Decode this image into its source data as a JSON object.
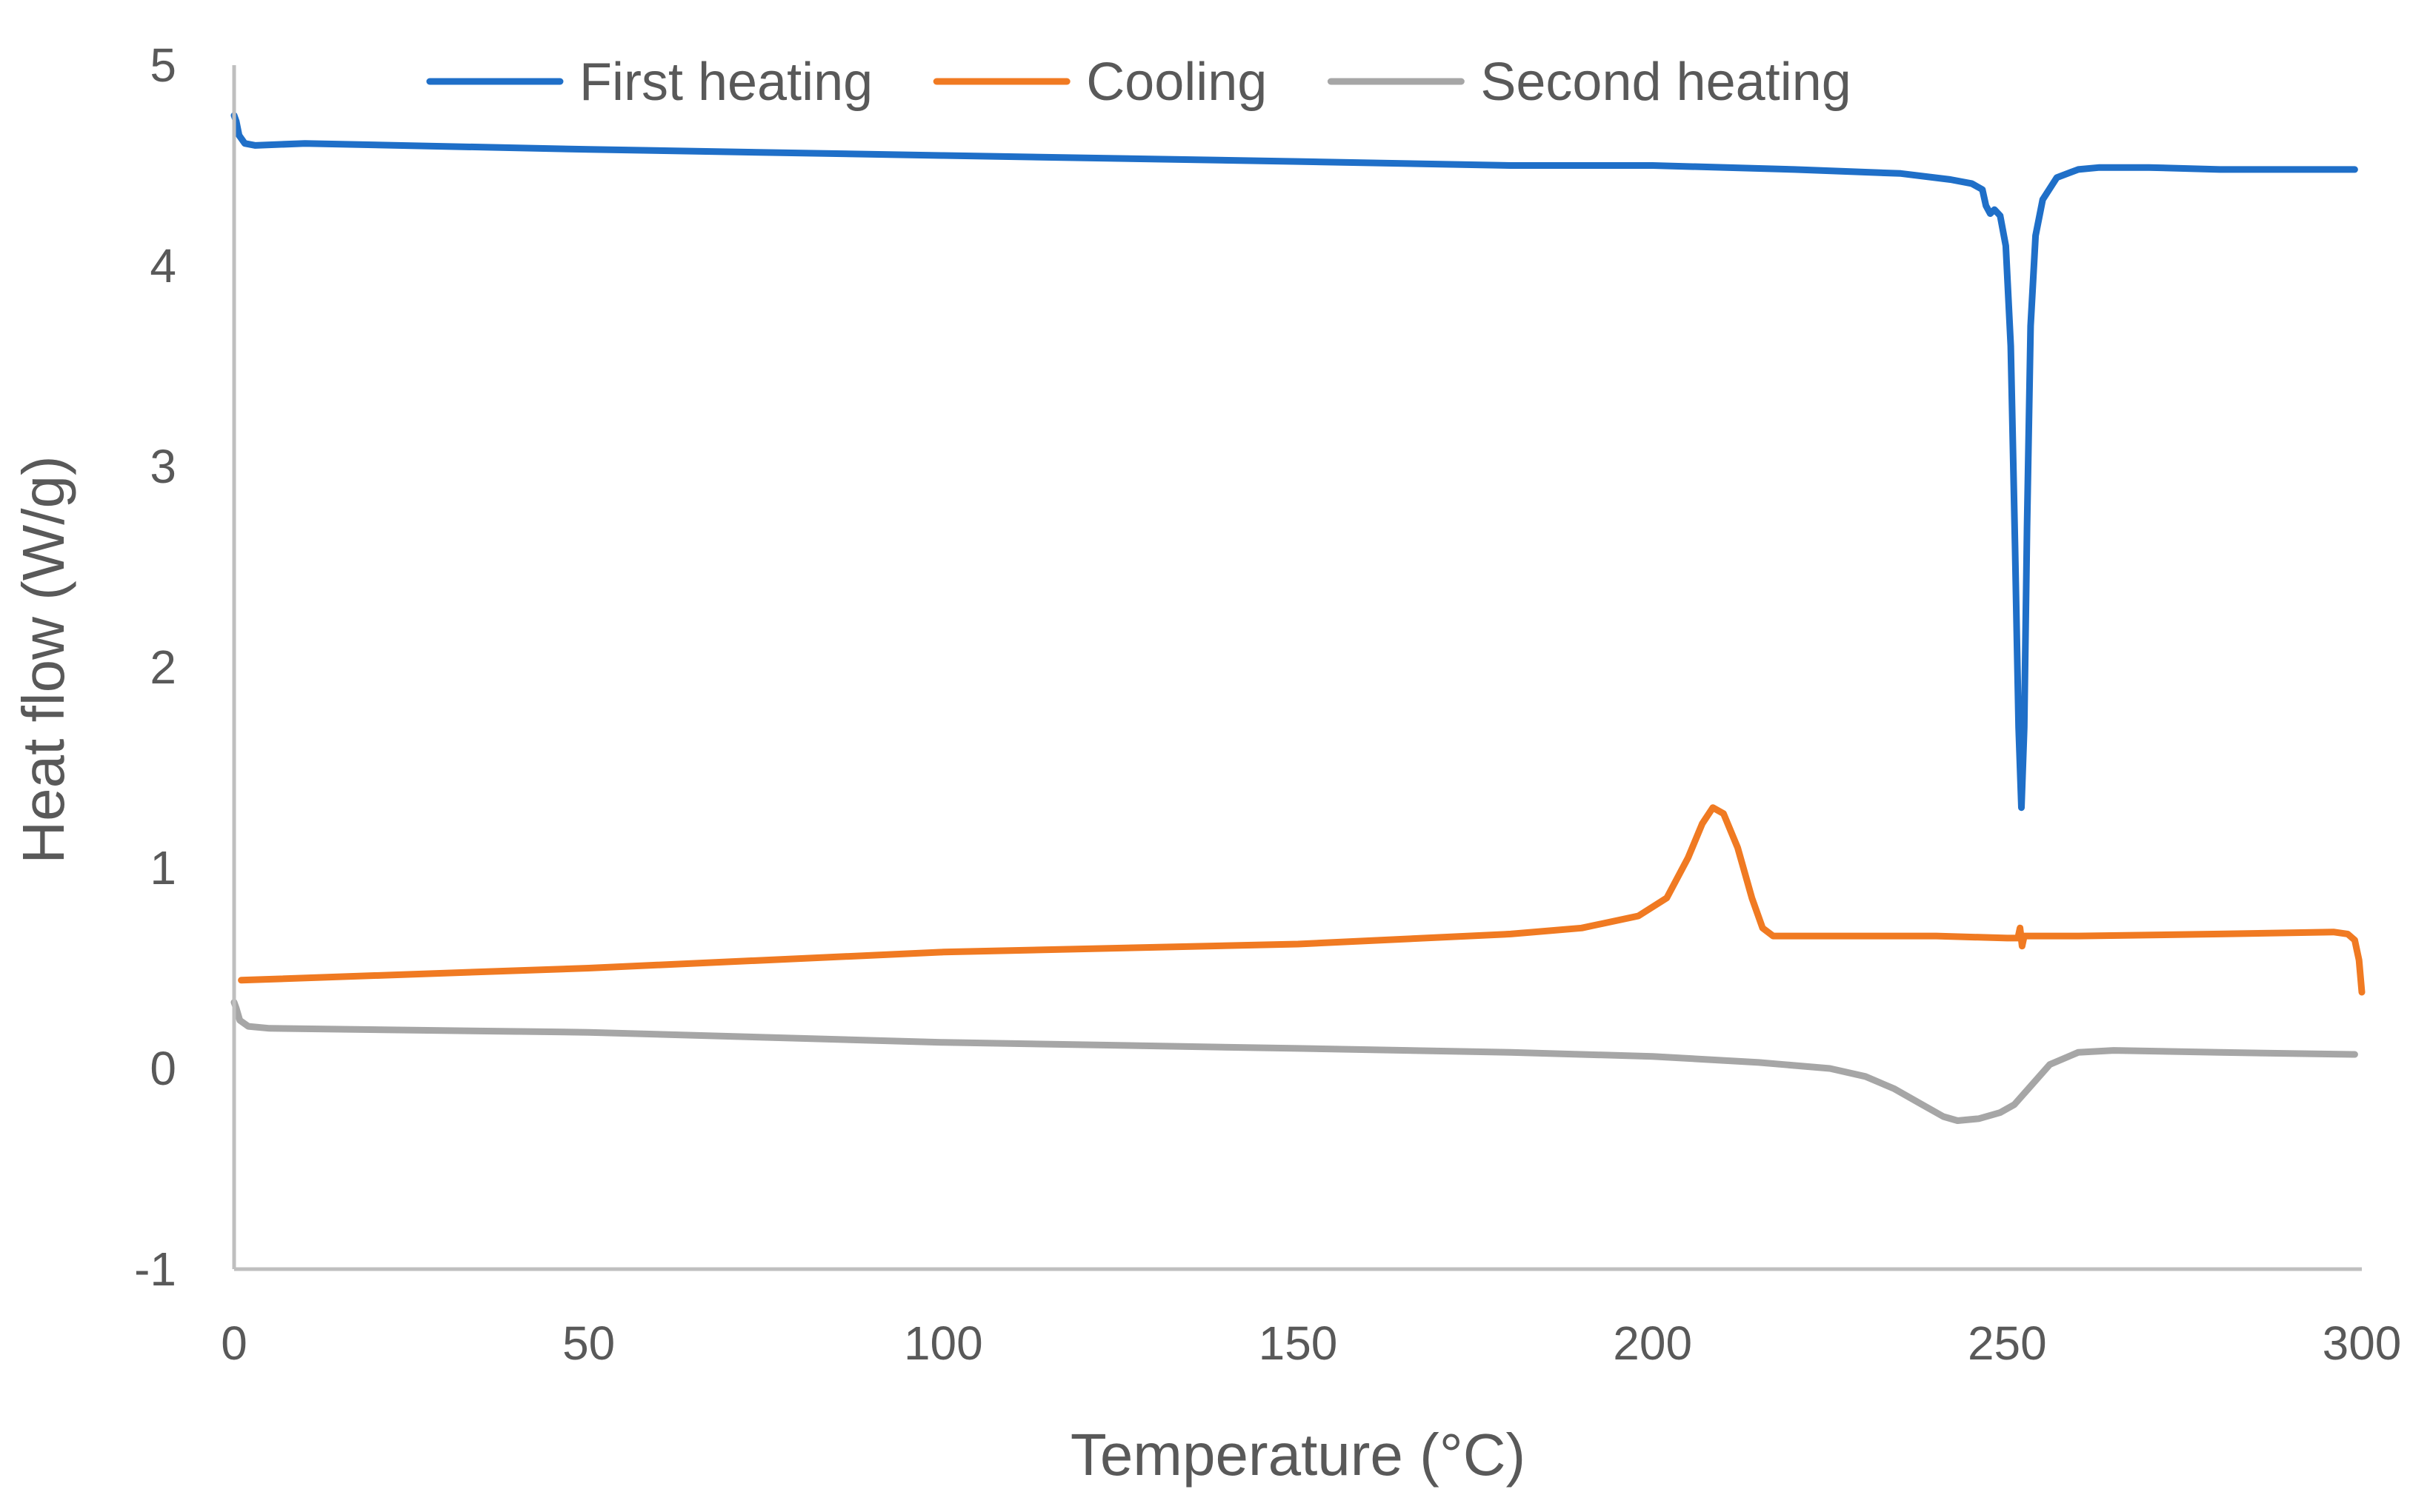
{
  "chart_data": {
    "type": "line",
    "title": "",
    "xlabel": "Temperature (°C)",
    "ylabel": "Heat flow (W/g)",
    "xlim": [
      0,
      300
    ],
    "ylim": [
      -1,
      5
    ],
    "xticks": [
      "0",
      "50",
      "100",
      "150",
      "200",
      "250",
      "300"
    ],
    "yticks": [
      "-1",
      "0",
      "1",
      "2",
      "3",
      "4",
      "5"
    ],
    "grid": false,
    "legend_position": "top",
    "series": [
      {
        "name": "First heating",
        "color": "#1f6fc8",
        "points": [
          [
            0,
            4.75
          ],
          [
            0.3,
            4.72
          ],
          [
            0.7,
            4.65
          ],
          [
            1.5,
            4.61
          ],
          [
            3,
            4.6
          ],
          [
            10,
            4.61
          ],
          [
            50,
            4.58
          ],
          [
            100,
            4.55
          ],
          [
            150,
            4.52
          ],
          [
            180,
            4.5
          ],
          [
            200,
            4.5
          ],
          [
            220,
            4.48
          ],
          [
            235,
            4.46
          ],
          [
            242,
            4.43
          ],
          [
            245,
            4.41
          ],
          [
            246.5,
            4.38
          ],
          [
            247,
            4.3
          ],
          [
            247.6,
            4.26
          ],
          [
            248.2,
            4.28
          ],
          [
            249,
            4.25
          ],
          [
            249.8,
            4.1
          ],
          [
            250.5,
            3.6
          ],
          [
            251.1,
            2.6
          ],
          [
            251.6,
            1.7
          ],
          [
            252,
            1.3
          ],
          [
            252.4,
            1.7
          ],
          [
            252.8,
            2.7
          ],
          [
            253.3,
            3.7
          ],
          [
            254,
            4.15
          ],
          [
            255,
            4.33
          ],
          [
            257,
            4.44
          ],
          [
            260,
            4.48
          ],
          [
            263,
            4.49
          ],
          [
            270,
            4.49
          ],
          [
            280,
            4.48
          ],
          [
            290,
            4.48
          ],
          [
            299,
            4.48
          ]
        ]
      },
      {
        "name": "Cooling",
        "color": "#f07a22",
        "points": [
          [
            1,
            0.44
          ],
          [
            50,
            0.5
          ],
          [
            100,
            0.58
          ],
          [
            150,
            0.62
          ],
          [
            180,
            0.67
          ],
          [
            190,
            0.7
          ],
          [
            198,
            0.76
          ],
          [
            202,
            0.85
          ],
          [
            205,
            1.05
          ],
          [
            207,
            1.22
          ],
          [
            208.5,
            1.3
          ],
          [
            210,
            1.27
          ],
          [
            212,
            1.1
          ],
          [
            214,
            0.85
          ],
          [
            215.5,
            0.7
          ],
          [
            217,
            0.66
          ],
          [
            220,
            0.66
          ],
          [
            240,
            0.66
          ],
          [
            250,
            0.65
          ],
          [
            251.5,
            0.65
          ],
          [
            251.8,
            0.7
          ],
          [
            252.1,
            0.61
          ],
          [
            252.4,
            0.66
          ],
          [
            260,
            0.66
          ],
          [
            280,
            0.67
          ],
          [
            296,
            0.68
          ],
          [
            298,
            0.67
          ],
          [
            299,
            0.64
          ],
          [
            299.6,
            0.54
          ],
          [
            300,
            0.38
          ]
        ]
      },
      {
        "name": "Second heating",
        "color": "#a6a6a6",
        "points": [
          [
            0,
            0.33
          ],
          [
            0.3,
            0.3
          ],
          [
            0.8,
            0.24
          ],
          [
            2,
            0.21
          ],
          [
            5,
            0.2
          ],
          [
            50,
            0.18
          ],
          [
            100,
            0.13
          ],
          [
            150,
            0.1
          ],
          [
            180,
            0.08
          ],
          [
            200,
            0.06
          ],
          [
            215,
            0.03
          ],
          [
            225,
            0.0
          ],
          [
            230,
            -0.04
          ],
          [
            234,
            -0.1
          ],
          [
            238,
            -0.18
          ],
          [
            241,
            -0.24
          ],
          [
            243,
            -0.26
          ],
          [
            246,
            -0.25
          ],
          [
            249,
            -0.22
          ],
          [
            251,
            -0.18
          ],
          [
            253,
            -0.1
          ],
          [
            256,
            0.02
          ],
          [
            260,
            0.08
          ],
          [
            265,
            0.09
          ],
          [
            280,
            0.08
          ],
          [
            299,
            0.07
          ]
        ]
      }
    ]
  }
}
